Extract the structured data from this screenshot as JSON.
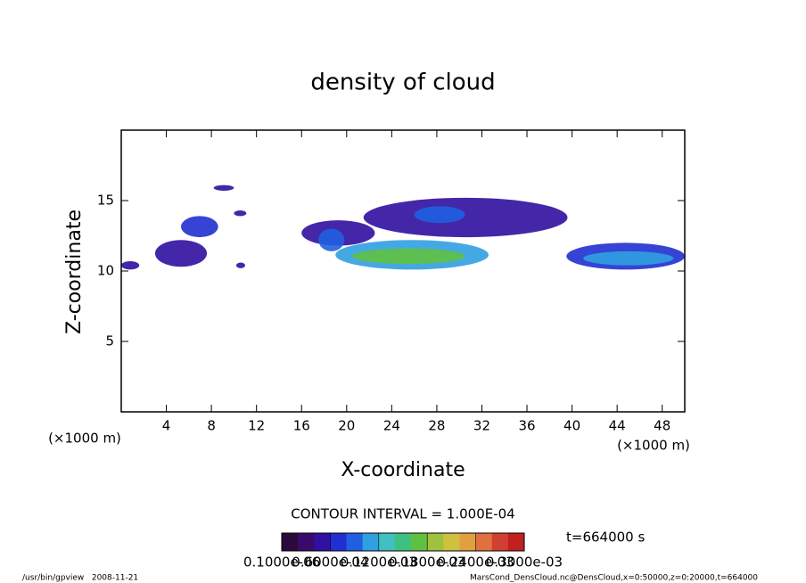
{
  "chart_data": {
    "type": "contour",
    "title": "density of cloud",
    "x_label": "X-coordinate",
    "y_label": "Z-coordinate",
    "x_unit": "(×1000 m)",
    "y_unit": "(×1000 m)",
    "xlim": [
      0,
      50
    ],
    "ylim": [
      0,
      20
    ],
    "xticks": [
      4,
      8,
      12,
      16,
      20,
      24,
      28,
      32,
      36,
      40,
      44,
      48
    ],
    "yticks": [
      5,
      10,
      15
    ],
    "regions": [
      {
        "x": [
          0,
          1.6
        ],
        "z": [
          10.1,
          10.7
        ],
        "value": 5e-05
      },
      {
        "x": [
          3,
          7.6
        ],
        "z": [
          10.3,
          12.2
        ],
        "value": 5e-05
      },
      {
        "x": [
          5.3,
          8.6
        ],
        "z": [
          12.4,
          13.9
        ],
        "value": 6e-05
      },
      {
        "x": [
          8.2,
          10
        ],
        "z": [
          15.7,
          16.1
        ],
        "value": 4e-05
      },
      {
        "x": [
          10,
          11.1
        ],
        "z": [
          13.9,
          14.3
        ],
        "value": 4e-05
      },
      {
        "x": [
          10.2,
          11
        ],
        "z": [
          10.2,
          10.6
        ],
        "value": 4e-05
      },
      {
        "x": [
          16,
          22.5
        ],
        "z": [
          11.8,
          13.6
        ],
        "value": 5e-05
      },
      {
        "x": [
          17.5,
          19.8
        ],
        "z": [
          11.4,
          13.0
        ],
        "value": 9e-05
      },
      {
        "x": [
          19,
          32.6
        ],
        "z": [
          10.1,
          12.2
        ],
        "value": 0.00011
      },
      {
        "x": [
          20.5,
          30.5
        ],
        "z": [
          10.5,
          11.6
        ],
        "value": 0.00016
      },
      {
        "x": [
          21.5,
          39.6
        ],
        "z": [
          12.4,
          15.2
        ],
        "value": 5e-05
      },
      {
        "x": [
          26,
          30.5
        ],
        "z": [
          13.4,
          14.6
        ],
        "value": 9e-05
      },
      {
        "x": [
          39.5,
          50
        ],
        "z": [
          10.1,
          12.0
        ],
        "value": 6e-05
      },
      {
        "x": [
          41,
          49
        ],
        "z": [
          10.4,
          11.4
        ],
        "value": 0.00011
      }
    ],
    "contour_interval": "CONTOUR INTERVAL = 1.000E-04",
    "colorbar": {
      "clim": [
        0,
        0.0003
      ],
      "colors": [
        "#2a0a3a",
        "#3a0a6a",
        "#3010a0",
        "#2030d0",
        "#2060e0",
        "#30a0e0",
        "#40c0c0",
        "#40c080",
        "#60c040",
        "#a0c040",
        "#d0c040",
        "#e0a040",
        "#e07040",
        "#d04030",
        "#c02020"
      ],
      "ticks": [
        {
          "value": 1e-07,
          "label": "0.1000e-06"
        },
        {
          "value": 6e-05,
          "label": "0.6000e-04"
        },
        {
          "value": 0.00012,
          "label": "0.1200e-03"
        },
        {
          "value": 0.00018,
          "label": "0.1800e-03"
        },
        {
          "value": 0.00024,
          "label": "0.2400e-03"
        },
        {
          "value": 0.0003,
          "label": "0.3000e-03"
        }
      ]
    },
    "time_label": "t=664000 s",
    "footer_left": "/usr/bin/gpview   2008-11-21",
    "footer_right": "MarsCond_DensCloud.nc@DensCloud,x=0:50000,z=0:20000,t=664000"
  }
}
